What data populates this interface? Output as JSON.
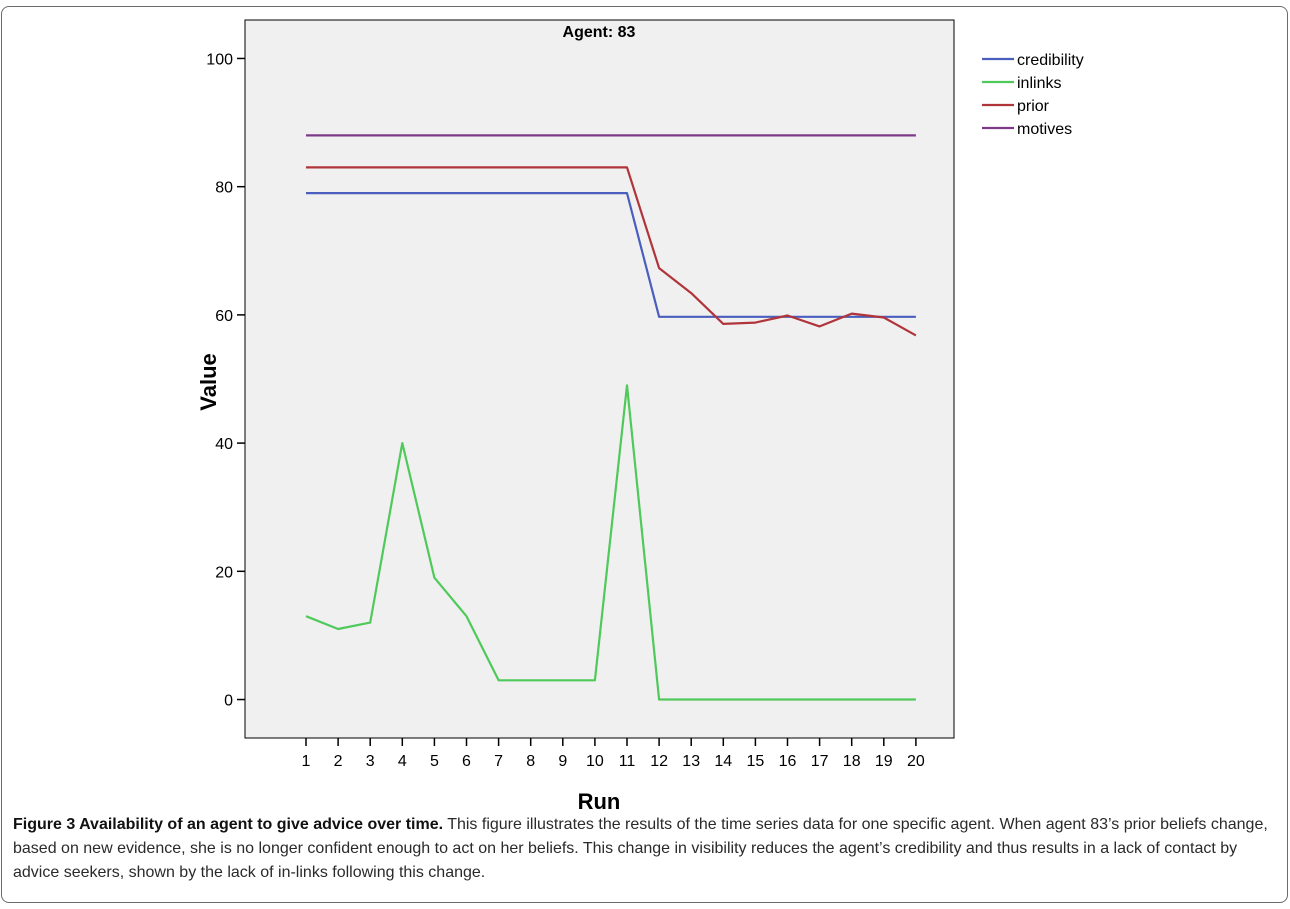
{
  "chart_data": {
    "type": "line",
    "title": "Agent: 83",
    "xlabel": "Run",
    "ylabel": "Value",
    "x": [
      1,
      2,
      3,
      4,
      5,
      6,
      7,
      8,
      9,
      10,
      11,
      12,
      13,
      14,
      15,
      16,
      17,
      18,
      19,
      20
    ],
    "x_ticks": [
      "1",
      "2",
      "3",
      "4",
      "5",
      "6",
      "7",
      "8",
      "9",
      "10",
      "11",
      "12",
      "13",
      "14",
      "15",
      "16",
      "17",
      "18",
      "19",
      "20"
    ],
    "ylim": [
      -6,
      106
    ],
    "y_ticks": [
      0,
      20,
      40,
      60,
      80,
      100
    ],
    "grid": false,
    "legend_position": "top-right outside",
    "series": [
      {
        "name": "credibility",
        "color": "#4a5ebd",
        "values": [
          79,
          79,
          79,
          79,
          79,
          79,
          79,
          79,
          79,
          79,
          79,
          59.7,
          59.7,
          59.7,
          59.7,
          59.7,
          59.7,
          59.7,
          59.7,
          59.7
        ]
      },
      {
        "name": "inlinks",
        "color": "#4fc95a",
        "values": [
          13,
          11,
          12,
          40,
          19,
          13,
          3,
          3,
          3,
          3,
          49,
          0,
          0,
          0,
          0,
          0,
          0,
          0,
          0,
          0
        ]
      },
      {
        "name": "prior",
        "color": "#b0353a",
        "values": [
          83,
          83,
          83,
          83,
          83,
          83,
          83,
          83,
          83,
          83,
          83,
          67.3,
          63.4,
          58.6,
          58.8,
          59.9,
          58.2,
          60.2,
          59.6,
          56.8
        ]
      },
      {
        "name": "motives",
        "color": "#7d3a87",
        "values": [
          88,
          88,
          88,
          88,
          88,
          88,
          88,
          88,
          88,
          88,
          88,
          88,
          88,
          88,
          88,
          88,
          88,
          88,
          88,
          88
        ]
      }
    ]
  },
  "caption": {
    "lead": "Figure 3 Availability of an agent to give advice over time.",
    "body": "This figure illustrates the results of the time series data for one specific agent. When agent 83’s prior beliefs change, based on new evidence, she is no longer confident enough to act on her beliefs. This change in visibility reduces the agent’s credibility and thus results in a lack of contact by advice seekers, shown by the lack of in-links following this change."
  }
}
